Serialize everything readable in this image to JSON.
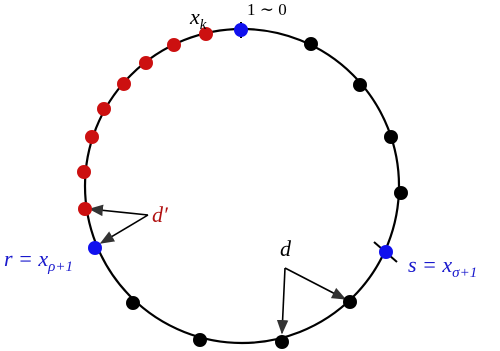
{
  "labels": {
    "top_point": {
      "main": "x",
      "sub": "k"
    },
    "wrap": "1 ∼ 0",
    "d_prime": "d′",
    "d": "d",
    "r_point": {
      "main": "r = x",
      "sub": "ρ+1"
    },
    "s_point": {
      "main": "s = x",
      "sub": "σ+1"
    }
  }
}
